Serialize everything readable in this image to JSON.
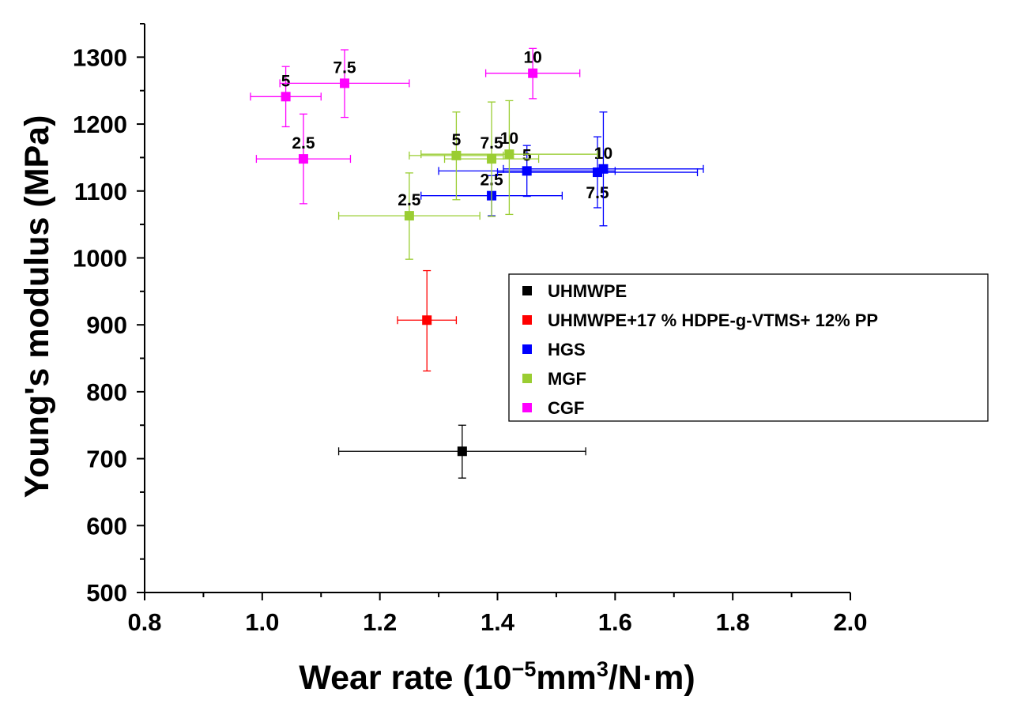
{
  "chart_data": {
    "type": "scatter",
    "title": "",
    "xlabel": "Wear rate (10−5mm3/N·m)",
    "xlabel_parts": {
      "base": "Wear rate (10",
      "exp1": "−5",
      "mid": "mm",
      "exp2": "3",
      "end": "/N·m)"
    },
    "ylabel": "Young's modulus (MPa)",
    "xlim": [
      0.8,
      2.0
    ],
    "ylim": [
      500,
      1350
    ],
    "xticks": [
      0.8,
      1.0,
      1.2,
      1.4,
      1.6,
      1.8,
      2.0
    ],
    "xtick_labels": [
      "0.8",
      "1.0",
      "1.2",
      "1.4",
      "1.6",
      "1.8",
      "2.0"
    ],
    "yticks": [
      500,
      600,
      700,
      800,
      900,
      1000,
      1100,
      1200,
      1300
    ],
    "ytick_labels": [
      "500",
      "600",
      "700",
      "800",
      "900",
      "1000",
      "1100",
      "1200",
      "1300"
    ],
    "grid": false,
    "legend_position": "right",
    "series": [
      {
        "name": "UHMWPE",
        "color": "#000000",
        "points": [
          {
            "x": 1.34,
            "y": 711,
            "xerr": [
              1.13,
              1.55
            ],
            "yerr": [
              671,
              750
            ],
            "label": ""
          }
        ]
      },
      {
        "name": "UHMWPE+17 % HDPE-g-VTMS+ 12% PP",
        "color": "#ff0000",
        "points": [
          {
            "x": 1.28,
            "y": 907,
            "xerr": [
              1.23,
              1.33
            ],
            "yerr": [
              831,
              981
            ],
            "label": ""
          }
        ]
      },
      {
        "name": "HGS",
        "color": "#0000ff",
        "points": [
          {
            "x": 1.39,
            "y": 1093,
            "xerr": [
              1.27,
              1.51
            ],
            "yerr": [
              1063,
              1123
            ],
            "label": "2.5",
            "label_pos": "above"
          },
          {
            "x": 1.45,
            "y": 1130,
            "xerr": [
              1.3,
              1.6
            ],
            "yerr": [
              1092,
              1168
            ],
            "label": "5",
            "label_pos": "above"
          },
          {
            "x": 1.57,
            "y": 1128,
            "xerr": [
              1.4,
              1.74
            ],
            "yerr": [
              1075,
              1181
            ],
            "label": "7.5",
            "label_pos": "below"
          },
          {
            "x": 1.58,
            "y": 1133,
            "xerr": [
              1.41,
              1.75
            ],
            "yerr": [
              1048,
              1218
            ],
            "label": "10",
            "label_pos": "above"
          }
        ]
      },
      {
        "name": "MGF",
        "color": "#9acd32",
        "points": [
          {
            "x": 1.25,
            "y": 1063,
            "xerr": [
              1.13,
              1.37
            ],
            "yerr": [
              998,
              1127
            ],
            "label": "2.5",
            "label_pos": "above"
          },
          {
            "x": 1.33,
            "y": 1153,
            "xerr": [
              1.25,
              1.41
            ],
            "yerr": [
              1087,
              1218
            ],
            "label": "5",
            "label_pos": "above"
          },
          {
            "x": 1.39,
            "y": 1148,
            "xerr": [
              1.31,
              1.47
            ],
            "yerr": [
              1062,
              1233
            ],
            "label": "7.5",
            "label_pos": "above"
          },
          {
            "x": 1.42,
            "y": 1155,
            "xerr": [
              1.27,
              1.57
            ],
            "yerr": [
              1065,
              1235
            ],
            "label": "10",
            "label_pos": "above"
          }
        ]
      },
      {
        "name": "CGF",
        "color": "#ff00ff",
        "points": [
          {
            "x": 1.07,
            "y": 1148,
            "xerr": [
              0.99,
              1.15
            ],
            "yerr": [
              1081,
              1215
            ],
            "label": "2.5",
            "label_pos": "above"
          },
          {
            "x": 1.04,
            "y": 1241,
            "xerr": [
              0.98,
              1.1
            ],
            "yerr": [
              1196,
              1286
            ],
            "label": "5",
            "label_pos": "above"
          },
          {
            "x": 1.14,
            "y": 1261,
            "xerr": [
              1.03,
              1.25
            ],
            "yerr": [
              1210,
              1311
            ],
            "label": "7.5",
            "label_pos": "above"
          },
          {
            "x": 1.46,
            "y": 1276,
            "xerr": [
              1.38,
              1.54
            ],
            "yerr": [
              1238,
              1313
            ],
            "label": "10",
            "label_pos": "above"
          }
        ]
      }
    ]
  }
}
